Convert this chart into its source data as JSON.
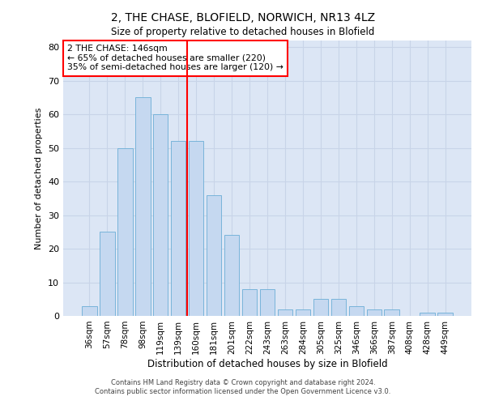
{
  "title": "2, THE CHASE, BLOFIELD, NORWICH, NR13 4LZ",
  "subtitle": "Size of property relative to detached houses in Blofield",
  "xlabel": "Distribution of detached houses by size in Blofield",
  "ylabel": "Number of detached properties",
  "bar_labels": [
    "36sqm",
    "57sqm",
    "78sqm",
    "98sqm",
    "119sqm",
    "139sqm",
    "160sqm",
    "181sqm",
    "201sqm",
    "222sqm",
    "243sqm",
    "263sqm",
    "284sqm",
    "305sqm",
    "325sqm",
    "346sqm",
    "366sqm",
    "387sqm",
    "408sqm",
    "428sqm",
    "449sqm"
  ],
  "bar_values": [
    3,
    25,
    50,
    65,
    60,
    52,
    52,
    36,
    24,
    8,
    8,
    2,
    2,
    5,
    5,
    3,
    2,
    2,
    0,
    1,
    1
  ],
  "bar_color": "#c5d8f0",
  "bar_edge_color": "#6baed6",
  "vline_x": 5.5,
  "vline_color": "red",
  "annotation_text": "2 THE CHASE: 146sqm\n← 65% of detached houses are smaller (220)\n35% of semi-detached houses are larger (120) →",
  "annotation_box_color": "white",
  "annotation_box_edge": "red",
  "ylim": [
    0,
    82
  ],
  "yticks": [
    0,
    10,
    20,
    30,
    40,
    50,
    60,
    70,
    80
  ],
  "grid_color": "#c8d4e8",
  "background_color": "#dce6f5",
  "footer_line1": "Contains HM Land Registry data © Crown copyright and database right 2024.",
  "footer_line2": "Contains public sector information licensed under the Open Government Licence v3.0."
}
